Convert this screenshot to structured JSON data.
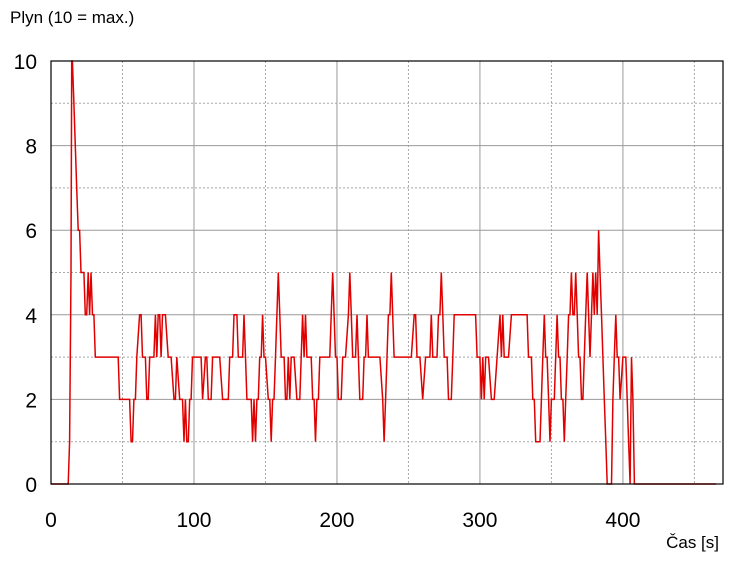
{
  "chart_data": {
    "type": "line",
    "title": "Plyn (10 = max.)",
    "xlabel": "Čas [s]",
    "ylabel": "",
    "xlim": [
      0,
      470
    ],
    "ylim": [
      0,
      10
    ],
    "x_ticks": [
      0,
      100,
      200,
      300,
      400
    ],
    "y_ticks": [
      0,
      2,
      4,
      6,
      8,
      10
    ],
    "x_minor_step": 50,
    "y_minor_step": 1,
    "grid": true,
    "line_color": "#e00000",
    "series": [
      {
        "points": [
          [
            0,
            0
          ],
          [
            12,
            0
          ],
          [
            13,
            1
          ],
          [
            14,
            5
          ],
          [
            14.5,
            10
          ],
          [
            15,
            10
          ],
          [
            16,
            9
          ],
          [
            17,
            8
          ],
          [
            18,
            7
          ],
          [
            19,
            6
          ],
          [
            20,
            6
          ],
          [
            21,
            5
          ],
          [
            22,
            5
          ],
          [
            23,
            5
          ],
          [
            24,
            4
          ],
          [
            25,
            4
          ],
          [
            26,
            5
          ],
          [
            27,
            4
          ],
          [
            28,
            5
          ],
          [
            29,
            4
          ],
          [
            30,
            4
          ],
          [
            31,
            3
          ],
          [
            35,
            3
          ],
          [
            40,
            3
          ],
          [
            45,
            3
          ],
          [
            47,
            3
          ],
          [
            48,
            2
          ],
          [
            50,
            2
          ],
          [
            52,
            2
          ],
          [
            55,
            2
          ],
          [
            56,
            1
          ],
          [
            57,
            1
          ],
          [
            58,
            2
          ],
          [
            59,
            2
          ],
          [
            60,
            3
          ],
          [
            62,
            4
          ],
          [
            63,
            4
          ],
          [
            64,
            3
          ],
          [
            65,
            3
          ],
          [
            66,
            3
          ],
          [
            67,
            2
          ],
          [
            68,
            2
          ],
          [
            69,
            3
          ],
          [
            70,
            3
          ],
          [
            72,
            3
          ],
          [
            73,
            4
          ],
          [
            74,
            3
          ],
          [
            75,
            4
          ],
          [
            76,
            4
          ],
          [
            77,
            3
          ],
          [
            78,
            4
          ],
          [
            80,
            4
          ],
          [
            82,
            3
          ],
          [
            84,
            3
          ],
          [
            86,
            2
          ],
          [
            87,
            2
          ],
          [
            88,
            3
          ],
          [
            90,
            2
          ],
          [
            92,
            2
          ],
          [
            93,
            1
          ],
          [
            94,
            2
          ],
          [
            95,
            1
          ],
          [
            96,
            1
          ],
          [
            97,
            2
          ],
          [
            98,
            2
          ],
          [
            99,
            3
          ],
          [
            100,
            3
          ],
          [
            102,
            3
          ],
          [
            105,
            3
          ],
          [
            106,
            2
          ],
          [
            108,
            3
          ],
          [
            109,
            3
          ],
          [
            110,
            2
          ],
          [
            112,
            2
          ],
          [
            113,
            3
          ],
          [
            115,
            3
          ],
          [
            118,
            3
          ],
          [
            120,
            2
          ],
          [
            124,
            2
          ],
          [
            125,
            3
          ],
          [
            127,
            3
          ],
          [
            128,
            4
          ],
          [
            130,
            4
          ],
          [
            131,
            3
          ],
          [
            134,
            3
          ],
          [
            135,
            4
          ],
          [
            136,
            3
          ],
          [
            137,
            2
          ],
          [
            140,
            2
          ],
          [
            141,
            1
          ],
          [
            142,
            2
          ],
          [
            143,
            1
          ],
          [
            144,
            2
          ],
          [
            145,
            2
          ],
          [
            146,
            3
          ],
          [
            147,
            3
          ],
          [
            148,
            4
          ],
          [
            149,
            3
          ],
          [
            150,
            3
          ],
          [
            152,
            2
          ],
          [
            153,
            2
          ],
          [
            154,
            1
          ],
          [
            155,
            2
          ],
          [
            156,
            2
          ],
          [
            157,
            3
          ],
          [
            158,
            4
          ],
          [
            159,
            5
          ],
          [
            160,
            4
          ],
          [
            161,
            3
          ],
          [
            163,
            3
          ],
          [
            164,
            2
          ],
          [
            165,
            2
          ],
          [
            166,
            3
          ],
          [
            167,
            2
          ],
          [
            168,
            3
          ],
          [
            170,
            3
          ],
          [
            172,
            2
          ],
          [
            174,
            2
          ],
          [
            175,
            3
          ],
          [
            176,
            4
          ],
          [
            177,
            3
          ],
          [
            178,
            4
          ],
          [
            179,
            3
          ],
          [
            180,
            3
          ],
          [
            182,
            3
          ],
          [
            183,
            2
          ],
          [
            184,
            2
          ],
          [
            185,
            1
          ],
          [
            186,
            2
          ],
          [
            187,
            2
          ],
          [
            188,
            3
          ],
          [
            190,
            3
          ],
          [
            192,
            3
          ],
          [
            195,
            3
          ],
          [
            196,
            4
          ],
          [
            197,
            5
          ],
          [
            198,
            4
          ],
          [
            199,
            3
          ],
          [
            200,
            3
          ],
          [
            201,
            2
          ],
          [
            203,
            2
          ],
          [
            204,
            3
          ],
          [
            206,
            3
          ],
          [
            208,
            4
          ],
          [
            209,
            5
          ],
          [
            210,
            4
          ],
          [
            211,
            3
          ],
          [
            213,
            3
          ],
          [
            214,
            4
          ],
          [
            215,
            3
          ],
          [
            216,
            2
          ],
          [
            218,
            2
          ],
          [
            219,
            3
          ],
          [
            220,
            3
          ],
          [
            221,
            4
          ],
          [
            222,
            3
          ],
          [
            225,
            3
          ],
          [
            230,
            3
          ],
          [
            232,
            2
          ],
          [
            233,
            1
          ],
          [
            234,
            2
          ],
          [
            235,
            3
          ],
          [
            236,
            4
          ],
          [
            237,
            4
          ],
          [
            238,
            5
          ],
          [
            239,
            4
          ],
          [
            240,
            3
          ],
          [
            242,
            3
          ],
          [
            245,
            3
          ],
          [
            248,
            3
          ],
          [
            250,
            3
          ],
          [
            252,
            3
          ],
          [
            254,
            4
          ],
          [
            255,
            4
          ],
          [
            256,
            3
          ],
          [
            258,
            3
          ],
          [
            260,
            2
          ],
          [
            262,
            3
          ],
          [
            263,
            3
          ],
          [
            265,
            3
          ],
          [
            266,
            4
          ],
          [
            267,
            3
          ],
          [
            268,
            3
          ],
          [
            270,
            3
          ],
          [
            271,
            4
          ],
          [
            272,
            4
          ],
          [
            273,
            5
          ],
          [
            274,
            4
          ],
          [
            275,
            3
          ],
          [
            277,
            3
          ],
          [
            278,
            2
          ],
          [
            280,
            2
          ],
          [
            281,
            3
          ],
          [
            282,
            4
          ],
          [
            285,
            4
          ],
          [
            290,
            4
          ],
          [
            295,
            4
          ],
          [
            297,
            4
          ],
          [
            298,
            3
          ],
          [
            300,
            3
          ],
          [
            301,
            2
          ],
          [
            302,
            3
          ],
          [
            303,
            2
          ],
          [
            304,
            3
          ],
          [
            306,
            3
          ],
          [
            308,
            2
          ],
          [
            310,
            2
          ],
          [
            312,
            3
          ],
          [
            314,
            4
          ],
          [
            315,
            3
          ],
          [
            316,
            4
          ],
          [
            317,
            3
          ],
          [
            318,
            3
          ],
          [
            320,
            3
          ],
          [
            322,
            4
          ],
          [
            325,
            4
          ],
          [
            330,
            4
          ],
          [
            333,
            4
          ],
          [
            334,
            3
          ],
          [
            336,
            3
          ],
          [
            337,
            2
          ],
          [
            338,
            2
          ],
          [
            339,
            1
          ],
          [
            342,
            1
          ],
          [
            343,
            2
          ],
          [
            344,
            3
          ],
          [
            345,
            4
          ],
          [
            346,
            3
          ],
          [
            347,
            3
          ],
          [
            348,
            2
          ],
          [
            349,
            1
          ],
          [
            350,
            2
          ],
          [
            352,
            2
          ],
          [
            353,
            3
          ],
          [
            354,
            4
          ],
          [
            355,
            3
          ],
          [
            356,
            3
          ],
          [
            357,
            2
          ],
          [
            358,
            2
          ],
          [
            359,
            1
          ],
          [
            360,
            2
          ],
          [
            361,
            3
          ],
          [
            362,
            4
          ],
          [
            363,
            4
          ],
          [
            364,
            5
          ],
          [
            365,
            4
          ],
          [
            366,
            4
          ],
          [
            367,
            5
          ],
          [
            368,
            4
          ],
          [
            369,
            3
          ],
          [
            370,
            3
          ],
          [
            371,
            2
          ],
          [
            372,
            2
          ],
          [
            373,
            3
          ],
          [
            374,
            4
          ],
          [
            375,
            5
          ],
          [
            376,
            4
          ],
          [
            377,
            3
          ],
          [
            378,
            4
          ],
          [
            379,
            5
          ],
          [
            380,
            4
          ],
          [
            381,
            5
          ],
          [
            382,
            4
          ],
          [
            383,
            6
          ],
          [
            384,
            5
          ],
          [
            385,
            4
          ],
          [
            386,
            3
          ],
          [
            387,
            2
          ],
          [
            388,
            1
          ],
          [
            389,
            0
          ],
          [
            392,
            0
          ],
          [
            393,
            2
          ],
          [
            394,
            3
          ],
          [
            395,
            4
          ],
          [
            396,
            3
          ],
          [
            397,
            3
          ],
          [
            398,
            2
          ],
          [
            400,
            3
          ],
          [
            402,
            3
          ],
          [
            403,
            2
          ],
          [
            404,
            1
          ],
          [
            405,
            0
          ],
          [
            406,
            3
          ],
          [
            407,
            2
          ],
          [
            408,
            0
          ],
          [
            410,
            0
          ],
          [
            415,
            0
          ],
          [
            420,
            0
          ],
          [
            425,
            0
          ],
          [
            430,
            0
          ],
          [
            435,
            0
          ],
          [
            440,
            0
          ],
          [
            445,
            0
          ],
          [
            450,
            0
          ],
          [
            460,
            0
          ],
          [
            465,
            0
          ]
        ]
      }
    ]
  }
}
